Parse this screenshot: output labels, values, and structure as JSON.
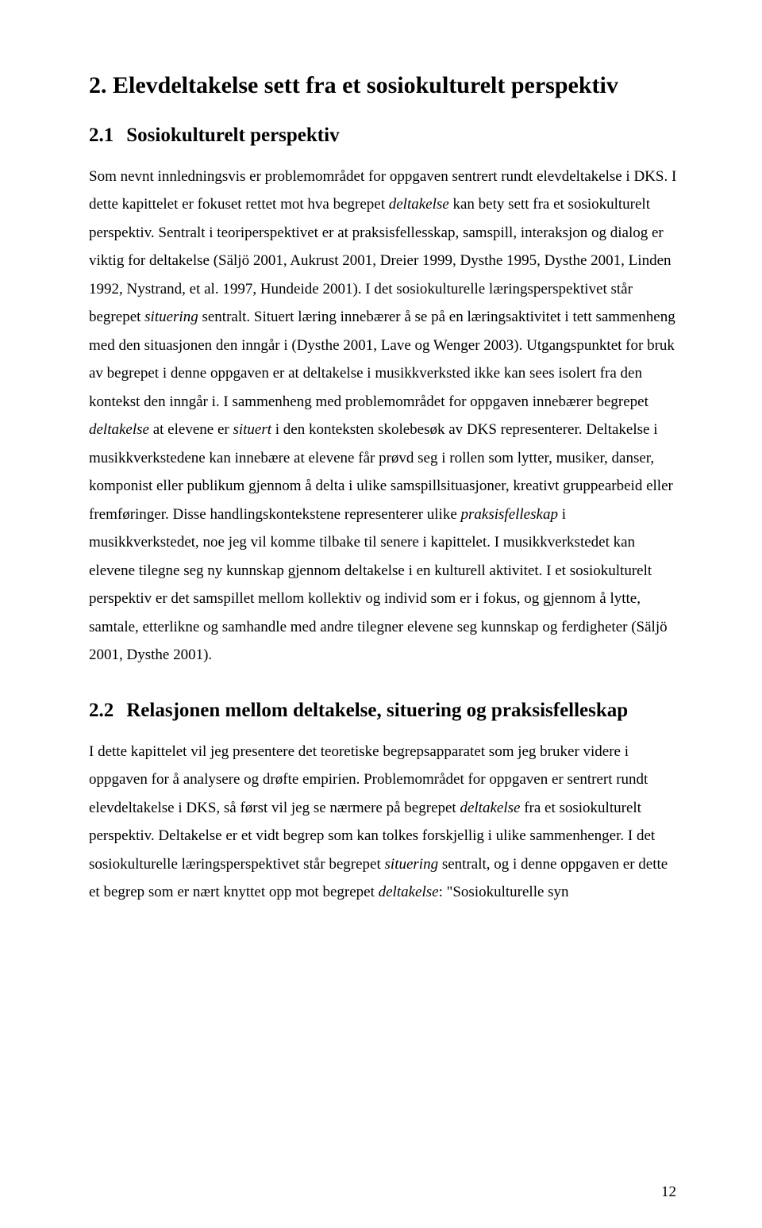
{
  "heading1": "2.  Elevdeltakelse sett fra et sosiokulturelt perspektiv",
  "section21": {
    "num": "2.1",
    "title": "Sosiokulturelt perspektiv",
    "p1a": "Som nevnt innledningsvis er problemområdet for oppgaven sentrert rundt elevdeltakelse i DKS. I dette kapittelet er fokuset rettet mot hva begrepet ",
    "p1b": "deltakelse",
    "p1c": " kan bety sett fra et sosiokulturelt perspektiv. Sentralt i teoriperspektivet er at praksisfellesskap, samspill, interaksjon og dialog er viktig for deltakelse (Säljö 2001, Aukrust 2001, Dreier 1999, Dysthe 1995, Dysthe 2001, Linden 1992, Nystrand, et al. 1997, Hundeide 2001). I det sosiokulturelle læringsperspektivet står begrepet ",
    "p1d": "situering",
    "p1e": " sentralt. Situert læring innebærer å se på en læringsaktivitet i tett sammenheng med den situasjonen den inngår i (Dysthe 2001, Lave og Wenger 2003). Utgangspunktet for bruk av begrepet i denne oppgaven er at deltakelse i musikkverksted ikke kan sees isolert fra den kontekst den inngår i. I sammenheng med problemområdet for oppgaven innebærer begrepet ",
    "p1f": "deltakelse",
    "p1g": " at elevene er ",
    "p1h": "situert",
    "p1i": " i den konteksten skolebesøk av DKS representerer. Deltakelse i musikkverkstedene kan innebære at elevene får prøvd seg i rollen som lytter, musiker, danser, komponist eller publikum gjennom å delta i ulike samspillsituasjoner, kreativt gruppearbeid eller fremføringer. Disse handlingskontekstene representerer ulike ",
    "p1j": "praksisfelleskap",
    "p1k": " i musikkverkstedet, noe jeg vil komme tilbake til senere i kapittelet. I musikkverkstedet kan elevene tilegne seg ny kunnskap gjennom deltakelse i en kulturell aktivitet. I et sosiokulturelt perspektiv er det samspillet mellom kollektiv og individ som er i fokus, og gjennom å lytte, samtale, etterlikne og samhandle med andre tilegner elevene seg kunnskap og ferdigheter (Säljö 2001, Dysthe 2001)."
  },
  "section22": {
    "num": "2.2",
    "title": "Relasjonen mellom deltakelse, situering og praksisfelleskap",
    "p1a": "I dette kapittelet vil jeg presentere det teoretiske begrepsapparatet som jeg bruker videre i oppgaven for å analysere og drøfte empirien. Problemområdet for oppgaven er sentrert rundt elevdeltakelse i DKS, så først vil jeg se nærmere på begrepet ",
    "p1b": "deltakelse",
    "p1c": " fra et sosiokulturelt perspektiv. Deltakelse er et vidt begrep som kan tolkes forskjellig i ulike sammenhenger. I det sosiokulturelle læringsperspektivet står begrepet ",
    "p1d": "situering",
    "p1e": " sentralt, og i denne oppgaven er dette et begrep som er nært knyttet opp mot begrepet ",
    "p1f": "deltakelse",
    "p1g": ": \"Sosiokulturelle syn"
  },
  "pageNumber": "12"
}
